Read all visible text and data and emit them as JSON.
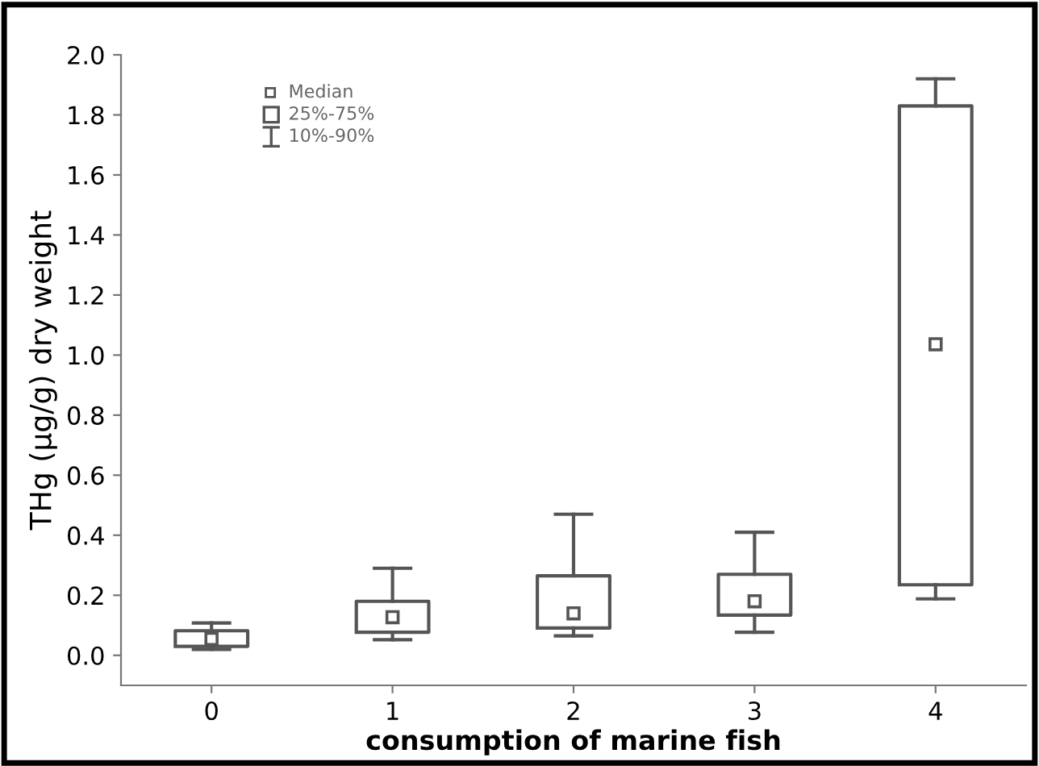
{
  "chart_data": {
    "type": "box",
    "xlabel": "consumption of marine fish",
    "ylabel": "THg (µg/g) dry weight",
    "categories": [
      "0",
      "1",
      "2",
      "3",
      "4"
    ],
    "boxes": [
      {
        "low": 0.02,
        "q1": 0.03,
        "median": 0.055,
        "q3": 0.082,
        "high": 0.108
      },
      {
        "low": 0.052,
        "q1": 0.077,
        "median": 0.127,
        "q3": 0.18,
        "high": 0.29
      },
      {
        "low": 0.065,
        "q1": 0.091,
        "median": 0.14,
        "q3": 0.265,
        "high": 0.47
      },
      {
        "low": 0.077,
        "q1": 0.134,
        "median": 0.18,
        "q3": 0.27,
        "high": 0.41
      },
      {
        "low": 0.188,
        "q1": 0.235,
        "median": 1.036,
        "q3": 1.83,
        "high": 1.92
      }
    ],
    "ylim": [
      -0.1,
      2.0
    ],
    "yticks": [
      {
        "value": 0,
        "label": "0.0"
      },
      0.2,
      0.4,
      0.6,
      0.8,
      {
        "value": 1,
        "label": "1.0"
      },
      1.2,
      1.4,
      1.6,
      1.8,
      {
        "value": 2,
        "label": "2.0"
      }
    ],
    "color": "#555555",
    "marker": "square",
    "grid": false,
    "annotations": [
      "Median",
      "25%-75%",
      "10%-90%"
    ]
  }
}
